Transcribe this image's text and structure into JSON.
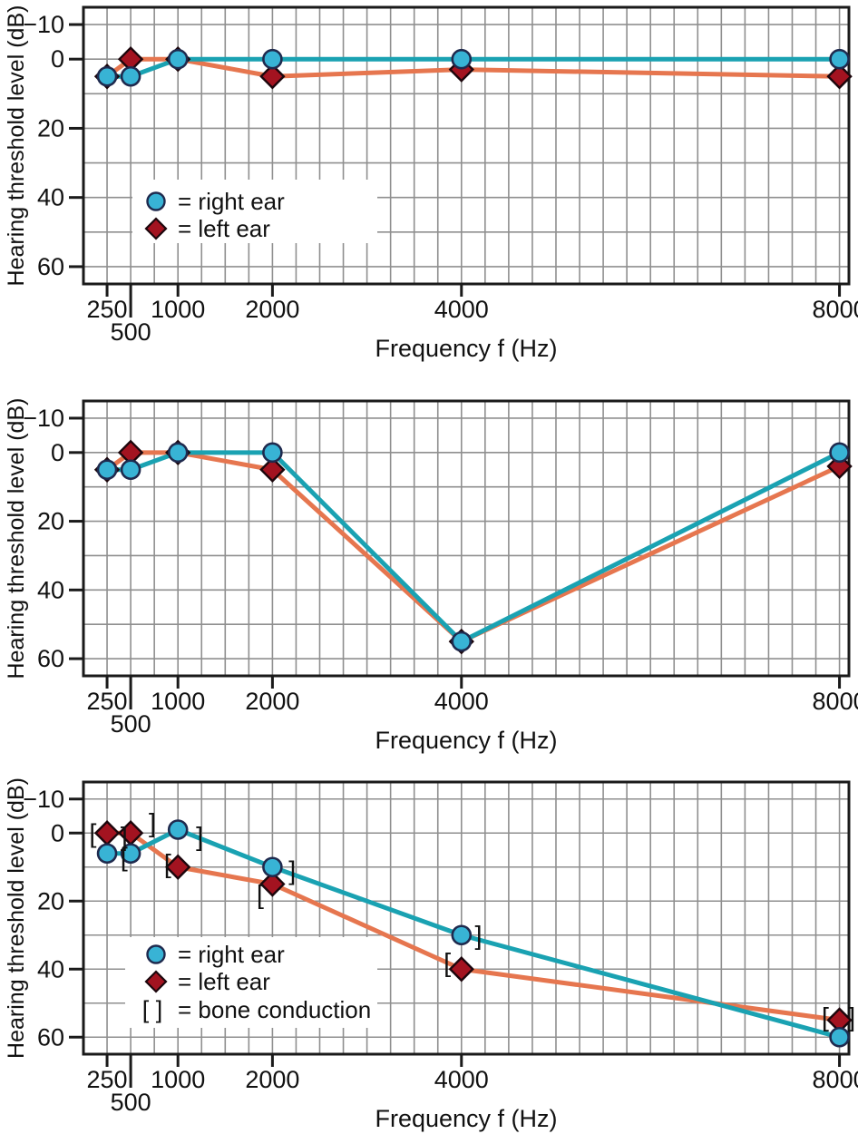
{
  "figure": {
    "x_axis_label": "Frequency f (Hz)",
    "y_axis_label": "Hearing threshold level (dB)",
    "x_ticks": [
      250,
      500,
      1000,
      2000,
      4000,
      8000
    ],
    "x_tick_labels": [
      "250",
      "500",
      "1000",
      "2000",
      "4000",
      "8000"
    ],
    "y_ticks": [
      -10,
      0,
      20,
      40,
      60
    ],
    "y_tick_labels": [
      "−10",
      "0",
      "20",
      "40",
      "60"
    ]
  },
  "colors": {
    "background": "#ffffff",
    "grid": "#8f8f8f",
    "frame": "#1a1a1a",
    "text": "#111111",
    "right_ear_line": "#1aa2b2",
    "right_ear_marker_fill": "#38b3d5",
    "right_ear_marker_outline": "#1f2a4e",
    "left_ear_line": "#e6764f",
    "left_ear_marker_fill": "#a31320",
    "left_ear_marker_outline": "#1c060c",
    "bracket": "#1a1a1a"
  },
  "legend_labels": {
    "right_ear": "= right ear",
    "left_ear": "= left ear",
    "bone_conduction": "= bone conduction",
    "bone_symbol": "[ ]"
  },
  "chart_data": [
    {
      "name": "audiogram-normal-hearing",
      "type": "line",
      "x_scale": "linear",
      "xlabel": "Frequency f (Hz)",
      "ylabel": "Hearing threshold level (dB)",
      "x": [
        250,
        500,
        1000,
        2000,
        4000,
        8000
      ],
      "xlim": [
        0,
        8100
      ],
      "ylim": [
        65,
        -15
      ],
      "y_axis_inverted": true,
      "x_ticks": [
        250,
        500,
        1000,
        2000,
        4000,
        8000
      ],
      "y_ticks": [
        -10,
        0,
        20,
        40,
        60
      ],
      "grid": {
        "on": true,
        "x_step_hz": 250,
        "y_step_db": 10
      },
      "legend": [
        {
          "symbol": "circle",
          "label": "= right ear"
        },
        {
          "symbol": "diamond",
          "label": "= left ear"
        }
      ],
      "legend_position": "inside-left",
      "series": [
        {
          "name": "right ear",
          "marker": "circle",
          "values": [
            5,
            5,
            0,
            0,
            0,
            0
          ]
        },
        {
          "name": "left ear",
          "marker": "diamond",
          "values": [
            5,
            0,
            0,
            5,
            3,
            5
          ]
        }
      ]
    },
    {
      "name": "audiogram-4000hz-notch",
      "type": "line",
      "x_scale": "linear",
      "xlabel": "Frequency f (Hz)",
      "ylabel": "Hearing threshold level (dB)",
      "x": [
        250,
        500,
        1000,
        2000,
        4000,
        8000
      ],
      "xlim": [
        0,
        8100
      ],
      "ylim": [
        65,
        -15
      ],
      "y_axis_inverted": true,
      "x_ticks": [
        250,
        500,
        1000,
        2000,
        4000,
        8000
      ],
      "y_ticks": [
        -10,
        0,
        20,
        40,
        60
      ],
      "grid": {
        "on": true,
        "x_step_hz": 250,
        "y_step_db": 10
      },
      "legend": [],
      "series": [
        {
          "name": "right ear",
          "marker": "circle",
          "values": [
            5,
            5,
            0,
            0,
            55,
            0
          ]
        },
        {
          "name": "left ear",
          "marker": "diamond",
          "values": [
            5,
            0,
            0,
            5,
            55,
            4
          ]
        }
      ]
    },
    {
      "name": "audiogram-high-frequency-loss",
      "type": "line",
      "x_scale": "linear",
      "xlabel": "Frequency f (Hz)",
      "ylabel": "Hearing threshold level (dB)",
      "x": [
        250,
        500,
        1000,
        2000,
        4000,
        8000
      ],
      "xlim": [
        0,
        8100
      ],
      "ylim": [
        65,
        -15
      ],
      "y_axis_inverted": true,
      "x_ticks": [
        250,
        500,
        1000,
        2000,
        4000,
        8000
      ],
      "y_ticks": [
        -10,
        0,
        20,
        40,
        60
      ],
      "grid": {
        "on": true,
        "x_step_hz": 250,
        "y_step_db": 10
      },
      "legend": [
        {
          "symbol": "circle",
          "label": "= right ear"
        },
        {
          "symbol": "diamond",
          "label": "= left ear"
        },
        {
          "symbol": "bracket",
          "label": "= bone conduction"
        }
      ],
      "legend_position": "inside-left",
      "series": [
        {
          "name": "right ear",
          "marker": "circle",
          "values": [
            6,
            6,
            -1,
            10,
            30,
            60
          ]
        },
        {
          "name": "left ear",
          "marker": "diamond",
          "values": [
            0,
            0,
            10,
            15,
            40,
            55
          ]
        }
      ],
      "bone_conduction_markers": [
        {
          "f": 100,
          "db": 0,
          "glyph": "["
        },
        {
          "f": 430,
          "db": 1,
          "glyph": "]"
        },
        {
          "f": 730,
          "db": -3,
          "glyph": "]"
        },
        {
          "f": 430,
          "db": 7,
          "glyph": "["
        },
        {
          "f": 890,
          "db": 9,
          "glyph": "["
        },
        {
          "f": 1230,
          "db": 1,
          "glyph": "]"
        },
        {
          "f": 2210,
          "db": 11,
          "glyph": "]"
        },
        {
          "f": 1870,
          "db": 18,
          "glyph": "["
        },
        {
          "f": 4180,
          "db": 30,
          "glyph": "]"
        },
        {
          "f": 3850,
          "db": 38,
          "glyph": "["
        },
        {
          "f": 7850,
          "db": 54,
          "glyph": "["
        },
        {
          "f": 8130,
          "db": 54,
          "glyph": "]"
        }
      ]
    }
  ]
}
